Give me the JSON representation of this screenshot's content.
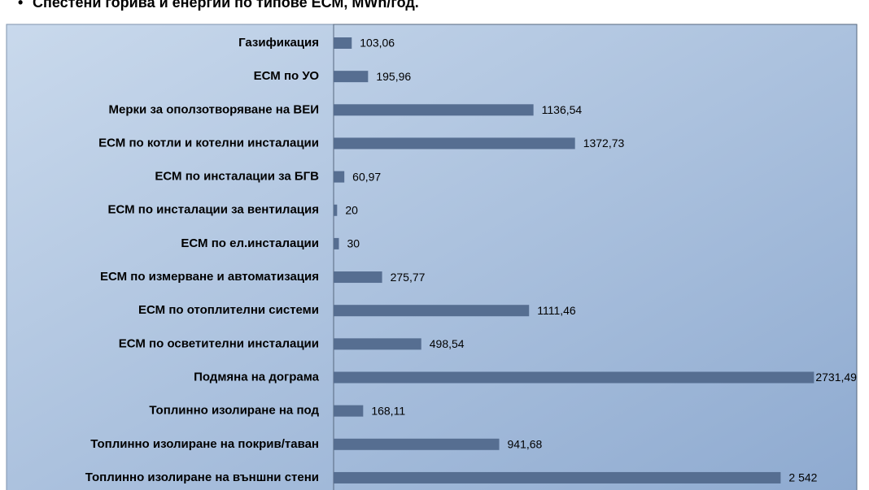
{
  "chart_data": {
    "type": "bar",
    "orientation": "horizontal",
    "title": "Спестени горива и енергии по типове ЕСМ, MWh/год.",
    "categories": [
      "Газификация",
      "ЕСМ по УО",
      "Мерки за оползотворяване  на ВЕИ",
      "ЕСМ по котли и котелни инсталации",
      "ЕСМ по инсталации за БГВ",
      "ЕСМ по инсталации за вентилация",
      "ЕСМ по ел.инсталации",
      "ЕСМ по измерване и автоматизация",
      "ЕСМ по отоплителни системи",
      "ЕСМ по осветителни инсталации",
      "Подмяна на дограма",
      "Топлинно изолиране на под",
      "Топлинно изолиране на покрив/таван",
      "Топлинно изолиране на външни стени"
    ],
    "values": [
      103.06,
      195.96,
      1136.54,
      1372.73,
      60.97,
      20,
      30,
      275.77,
      1111.46,
      498.54,
      2731.49,
      168.11,
      941.68,
      2542
    ],
    "value_labels": [
      "103,06",
      "195,96",
      "1136,54",
      "1372,73",
      "60,97",
      "20",
      "30",
      "275,77",
      "1111,46",
      "498,54",
      "2731,49",
      "168,11",
      "941,68",
      "2 542"
    ],
    "color": "#566e91",
    "xlim": [
      0,
      2975
    ]
  }
}
